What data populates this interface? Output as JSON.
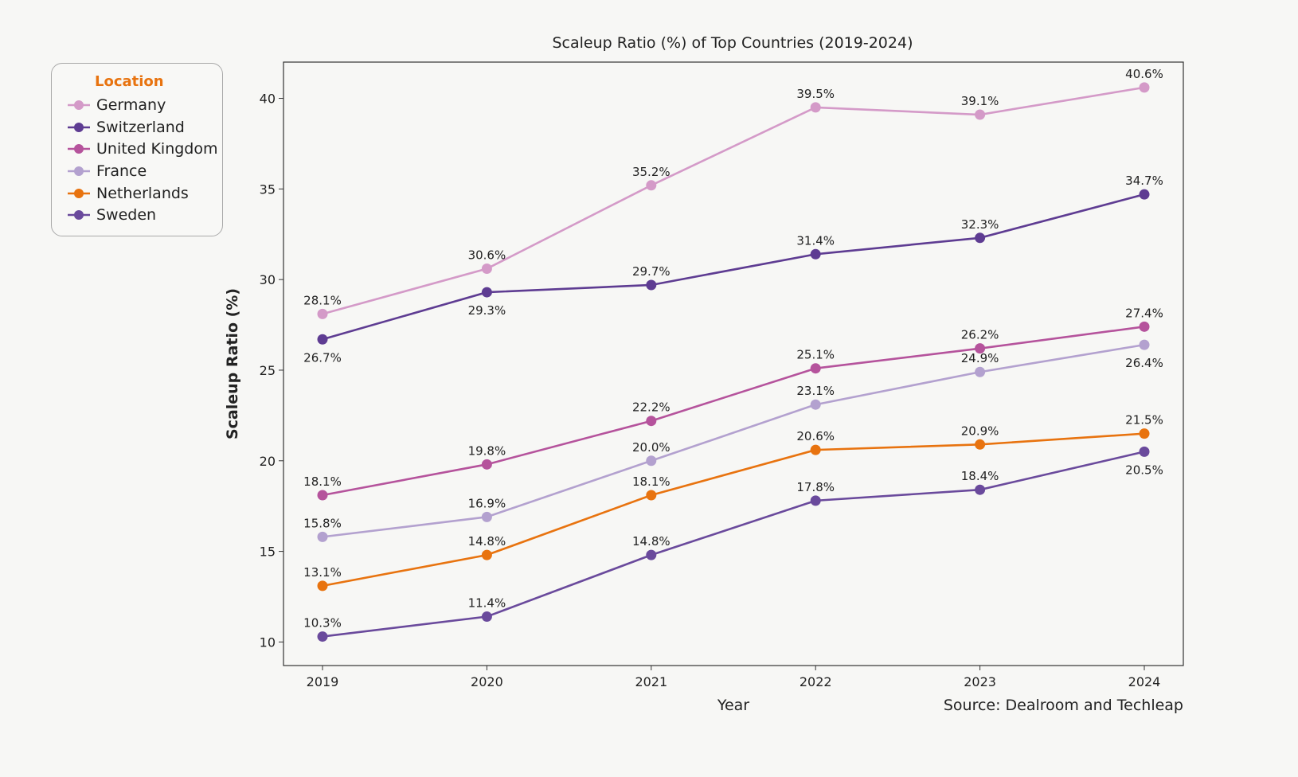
{
  "chart_data": {
    "type": "line",
    "title": "Scaleup Ratio (%) of Top Countries (2019-2024)",
    "xlabel": "Year",
    "ylabel": "Scaleup Ratio (%)",
    "source": "Source: Dealroom and Techleap",
    "x": [
      "2019",
      "2020",
      "2021",
      "2022",
      "2023",
      "2024"
    ],
    "ylim": [
      8.7,
      42.0
    ],
    "yticks": [
      10,
      15,
      20,
      25,
      30,
      35,
      40
    ],
    "legend": {
      "title": "Location",
      "placement": "upper-left-outside",
      "title_color": "#e8730f"
    },
    "series": [
      {
        "name": "Germany",
        "color": "#d49ac8",
        "values": [
          28.1,
          30.6,
          35.2,
          39.5,
          39.1,
          40.6
        ],
        "labels": [
          "28.1%",
          "30.6%",
          "35.2%",
          "39.5%",
          "39.1%",
          "40.6%"
        ],
        "label_pos": [
          "above",
          "above",
          "above",
          "above",
          "above",
          "above"
        ]
      },
      {
        "name": "Switzerland",
        "color": "#5e3c92",
        "values": [
          26.7,
          29.3,
          29.7,
          31.4,
          32.3,
          34.7
        ],
        "labels": [
          "26.7%",
          "29.3%",
          "29.7%",
          "31.4%",
          "32.3%",
          "34.7%"
        ],
        "label_pos": [
          "below",
          "below",
          "above",
          "above",
          "above",
          "above"
        ]
      },
      {
        "name": "United Kingdom",
        "color": "#b5539c",
        "values": [
          18.1,
          19.8,
          22.2,
          25.1,
          26.2,
          27.4
        ],
        "labels": [
          "18.1%",
          "19.8%",
          "22.2%",
          "25.1%",
          "26.2%",
          "27.4%"
        ],
        "label_pos": [
          "above",
          "above",
          "above",
          "above",
          "above",
          "above"
        ]
      },
      {
        "name": "France",
        "color": "#b3a1cf",
        "values": [
          15.8,
          16.9,
          20.0,
          23.1,
          24.9,
          26.4
        ],
        "labels": [
          "15.8%",
          "16.9%",
          "20.0%",
          "23.1%",
          "24.9%",
          "26.4%"
        ],
        "label_pos": [
          "above",
          "above",
          "above",
          "above",
          "above",
          "below"
        ]
      },
      {
        "name": "Netherlands",
        "color": "#e8730f",
        "values": [
          13.1,
          14.8,
          18.1,
          20.6,
          20.9,
          21.5
        ],
        "labels": [
          "13.1%",
          "14.8%",
          "18.1%",
          "20.6%",
          "20.9%",
          "21.5%"
        ],
        "label_pos": [
          "above",
          "above",
          "above",
          "above",
          "above",
          "above"
        ]
      },
      {
        "name": "Sweden",
        "color": "#6a4a9c",
        "values": [
          10.3,
          11.4,
          14.8,
          17.8,
          18.4,
          20.5
        ],
        "labels": [
          "10.3%",
          "11.4%",
          "14.8%",
          "17.8%",
          "18.4%",
          "20.5%"
        ],
        "label_pos": [
          "above",
          "above",
          "above",
          "above",
          "above",
          "below"
        ]
      }
    ]
  }
}
